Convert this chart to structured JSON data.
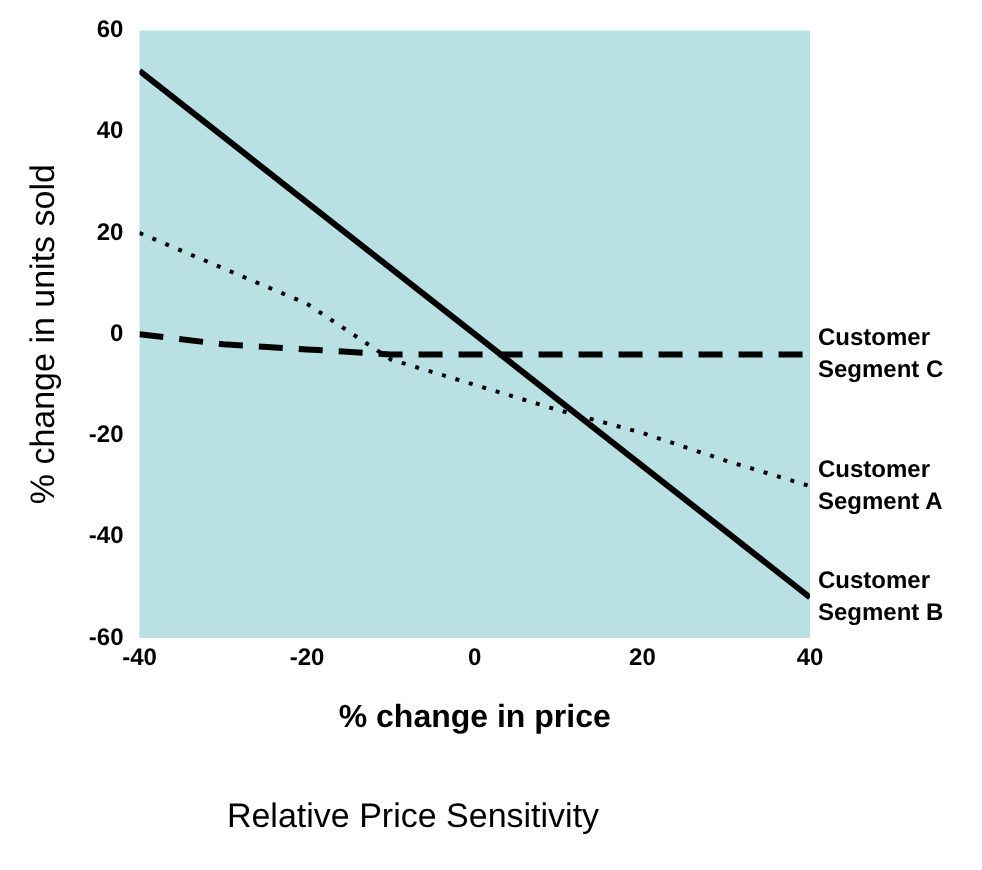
{
  "chart_data": {
    "type": "line",
    "title": "Relative Price Sensitivity",
    "xlabel": "% change in price",
    "ylabel": "% change in units sold",
    "x": [
      -40,
      -30,
      -20,
      -10,
      0,
      10,
      20,
      30,
      40
    ],
    "series": [
      {
        "name": "Customer Segment C",
        "color": "#000000",
        "line_style": "dashed",
        "values": [
          0,
          -2,
          -3,
          -4,
          -4,
          -4,
          -4,
          -4,
          -4
        ]
      },
      {
        "name": "Customer Segment A",
        "color": "#000000",
        "line_style": "dotted",
        "values": [
          20,
          13,
          6,
          -5,
          -10,
          -15,
          -19.5,
          -25,
          -30
        ]
      },
      {
        "name": "Customer Segment B",
        "color": "#000000",
        "line_style": "solid",
        "values": [
          52,
          39,
          26,
          13,
          0,
          -13,
          -26,
          -39,
          -52
        ]
      }
    ],
    "xlim": [
      -40,
      40
    ],
    "xticks": [
      -40,
      -20,
      0,
      20,
      40
    ],
    "ylim": [
      -60,
      60
    ],
    "yticks": [
      -60,
      -40,
      -20,
      0,
      20,
      40,
      60
    ],
    "grid": false,
    "legend": false,
    "marker": "none"
  }
}
